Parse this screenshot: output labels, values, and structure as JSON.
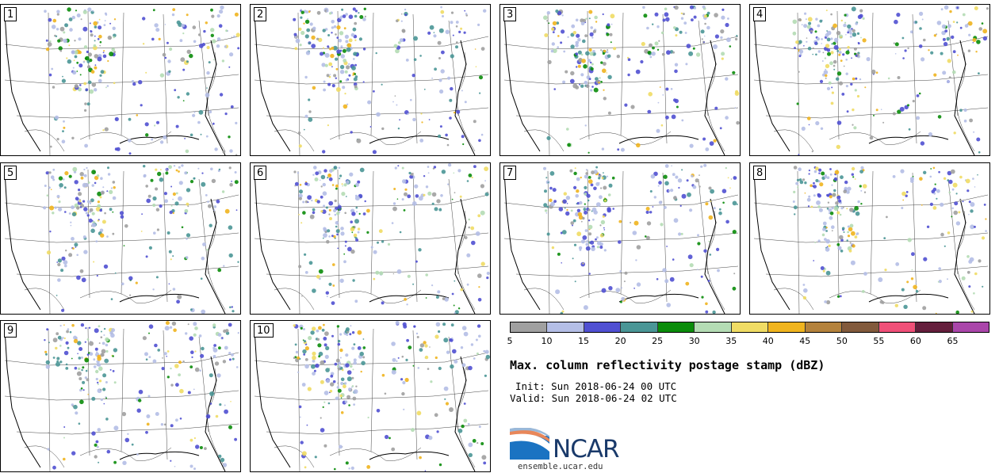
{
  "panels": [
    {
      "label": "1"
    },
    {
      "label": "2"
    },
    {
      "label": "3"
    },
    {
      "label": "4"
    },
    {
      "label": "5"
    },
    {
      "label": "6"
    },
    {
      "label": "7"
    },
    {
      "label": "8"
    },
    {
      "label": "9"
    },
    {
      "label": "10"
    }
  ],
  "colorbar": {
    "colors": [
      "#a0a0a0",
      "#b4bee6",
      "#5050d2",
      "#4a9696",
      "#0a8c0a",
      "#b4dcb4",
      "#f0dc64",
      "#f0b41e",
      "#b4823c",
      "#825a3c",
      "#f05078",
      "#641e3c",
      "#aa46aa"
    ],
    "ticks": [
      "5",
      "10",
      "15",
      "20",
      "25",
      "30",
      "35",
      "40",
      "45",
      "50",
      "55",
      "60",
      "65"
    ]
  },
  "title": "Max. column reflectivity postage stamp (dBZ)",
  "init": "Init: Sun 2018-06-24 00 UTC",
  "valid": "Valid: Sun 2018-06-24 02 UTC",
  "logo": {
    "text": "NCAR"
  },
  "site": "ensemble.ucar.edu"
}
